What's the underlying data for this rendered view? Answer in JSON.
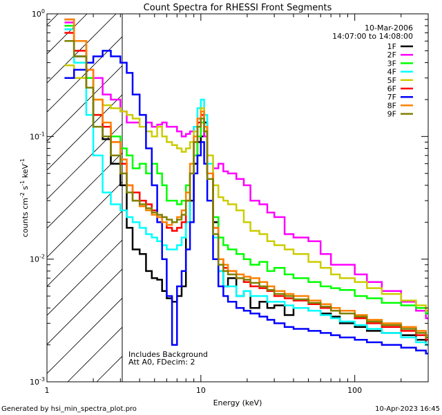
{
  "title": "Count Spectra for RHESSI Front Segments",
  "date": "10-Mar-2006",
  "time_range": "14:07:00 to 14:08:00",
  "footer_left": "Generated by hsi_min_spectra_plot.pro",
  "footer_right": "10-Apr-2023 16:45",
  "annotation": [
    "Includes Background",
    "Att A0, FDecim: 2"
  ],
  "chart_data": {
    "type": "line",
    "title": "Count Spectra for RHESSI Front Segments",
    "xlabel": "Energy (keV)",
    "ylabel_parts": {
      "base": "counts cm",
      "sup1": "-2",
      "mid": " s",
      "sup2": "-1",
      "tail": " keV",
      "sup3": "-1"
    },
    "xscale": "log",
    "yscale": "log",
    "xlim": [
      1,
      300
    ],
    "ylim": [
      0.001,
      1
    ],
    "x_tick_labels": [
      {
        "value": 1,
        "label": "1"
      },
      {
        "value": 10,
        "label": "10"
      },
      {
        "value": 100,
        "label": "100"
      }
    ],
    "y_tick_labels": [
      {
        "value": 1,
        "base": "10",
        "exp": "0"
      },
      {
        "value": 0.1,
        "base": "10",
        "exp": "-1"
      },
      {
        "value": 0.01,
        "base": "10",
        "exp": "-2"
      },
      {
        "value": 0.001,
        "base": "10",
        "exp": "-3"
      }
    ],
    "shaded_region": {
      "x": [
        1,
        3
      ],
      "style": "hatched"
    },
    "legend_position": "top-right",
    "series": [
      {
        "name": "1F",
        "color": "#000000",
        "x": [
          1.3,
          1.5,
          1.8,
          2.0,
          2.3,
          2.6,
          3.0,
          3.3,
          3.6,
          4.0,
          4.4,
          4.8,
          5.2,
          5.6,
          6.0,
          6.5,
          7.0,
          7.5,
          8.0,
          8.5,
          9.0,
          9.5,
          10.0,
          10.5,
          11.0,
          12.0,
          13,
          14,
          15,
          17,
          19,
          21,
          24,
          27,
          30,
          35,
          40,
          50,
          60,
          70,
          80,
          100,
          120,
          150,
          200,
          250,
          290
        ],
        "y": [
          0.9,
          0.45,
          0.3,
          0.12,
          0.095,
          0.06,
          0.04,
          0.018,
          0.012,
          0.011,
          0.008,
          0.007,
          0.0068,
          0.0055,
          0.0048,
          0.0045,
          0.005,
          0.006,
          0.02,
          0.03,
          0.06,
          0.09,
          0.1,
          0.13,
          0.05,
          0.02,
          0.008,
          0.006,
          0.007,
          0.005,
          0.0055,
          0.004,
          0.0045,
          0.004,
          0.0042,
          0.0035,
          0.004,
          0.0038,
          0.0036,
          0.0034,
          0.003,
          0.0028,
          0.0026,
          0.0025,
          0.0024,
          0.0022,
          0.002
        ]
      },
      {
        "name": "2F",
        "color": "#ff00ff",
        "x": [
          1.3,
          1.5,
          1.8,
          2.0,
          2.3,
          2.6,
          3.0,
          3.3,
          3.6,
          4.0,
          4.4,
          4.8,
          5.2,
          5.6,
          6.0,
          6.5,
          7.0,
          7.5,
          8.0,
          8.5,
          9.0,
          9.5,
          10.0,
          10.5,
          11.0,
          12.0,
          13,
          14,
          15,
          17,
          19,
          21,
          24,
          27,
          30,
          35,
          40,
          50,
          60,
          70,
          80,
          100,
          120,
          150,
          200,
          250,
          290
        ],
        "y": [
          0.85,
          0.6,
          0.35,
          0.3,
          0.22,
          0.2,
          0.16,
          0.13,
          0.13,
          0.12,
          0.13,
          0.12,
          0.125,
          0.13,
          0.12,
          0.12,
          0.11,
          0.1,
          0.105,
          0.11,
          0.12,
          0.14,
          0.15,
          0.1,
          0.06,
          0.055,
          0.06,
          0.052,
          0.05,
          0.045,
          0.04,
          0.03,
          0.028,
          0.024,
          0.022,
          0.016,
          0.015,
          0.014,
          0.011,
          0.009,
          0.009,
          0.0075,
          0.0065,
          0.0055,
          0.0045,
          0.0038,
          0.0033
        ]
      },
      {
        "name": "3F",
        "color": "#00ff00",
        "x": [
          1.3,
          1.5,
          1.8,
          2.0,
          2.3,
          2.6,
          3.0,
          3.3,
          3.6,
          4.0,
          4.4,
          4.8,
          5.2,
          5.6,
          6.0,
          6.5,
          7.0,
          7.5,
          8.0,
          8.5,
          9.0,
          9.5,
          10.0,
          10.5,
          11.0,
          12.0,
          13,
          14,
          15,
          17,
          19,
          21,
          24,
          27,
          30,
          35,
          40,
          50,
          60,
          70,
          80,
          100,
          120,
          150,
          200,
          250,
          290
        ],
        "y": [
          0.8,
          0.6,
          0.3,
          0.15,
          0.12,
          0.1,
          0.08,
          0.07,
          0.055,
          0.06,
          0.05,
          0.06,
          0.05,
          0.04,
          0.03,
          0.03,
          0.028,
          0.03,
          0.04,
          0.05,
          0.07,
          0.1,
          0.13,
          0.11,
          0.05,
          0.022,
          0.015,
          0.013,
          0.012,
          0.011,
          0.01,
          0.009,
          0.0095,
          0.008,
          0.0085,
          0.0075,
          0.007,
          0.0065,
          0.006,
          0.0058,
          0.0056,
          0.005,
          0.0048,
          0.0044,
          0.0042,
          0.004,
          0.0036
        ]
      },
      {
        "name": "4F",
        "color": "#00ffff",
        "x": [
          1.3,
          1.5,
          1.8,
          2.0,
          2.3,
          2.6,
          3.0,
          3.3,
          3.6,
          4.0,
          4.4,
          4.8,
          5.2,
          5.6,
          6.0,
          6.5,
          7.0,
          7.5,
          8.0,
          8.5,
          9.0,
          9.5,
          10.0,
          10.5,
          11.0,
          12.0,
          13,
          14,
          15,
          17,
          19,
          21,
          24,
          27,
          30,
          35,
          40,
          50,
          60,
          70,
          80,
          100,
          120,
          150,
          200,
          250,
          290
        ],
        "y": [
          0.75,
          0.4,
          0.15,
          0.07,
          0.035,
          0.028,
          0.025,
          0.022,
          0.02,
          0.018,
          0.016,
          0.015,
          0.014,
          0.013,
          0.012,
          0.012,
          0.013,
          0.015,
          0.02,
          0.05,
          0.12,
          0.17,
          0.2,
          0.15,
          0.06,
          0.015,
          0.008,
          0.006,
          0.006,
          0.005,
          0.0055,
          0.005,
          0.005,
          0.0045,
          0.0045,
          0.0042,
          0.004,
          0.0038,
          0.0035,
          0.0033,
          0.0031,
          0.0029,
          0.0027,
          0.0025,
          0.0023,
          0.0021,
          0.002
        ]
      },
      {
        "name": "5F",
        "color": "#cccc00",
        "x": [
          1.3,
          1.5,
          1.8,
          2.0,
          2.3,
          2.6,
          3.0,
          3.3,
          3.6,
          4.0,
          4.4,
          4.8,
          5.2,
          5.6,
          6.0,
          6.5,
          7.0,
          7.5,
          8.0,
          8.5,
          9.0,
          9.5,
          10.0,
          10.5,
          11.0,
          12.0,
          13,
          14,
          15,
          17,
          19,
          21,
          24,
          27,
          30,
          35,
          40,
          50,
          60,
          70,
          80,
          100,
          120,
          150,
          200,
          250,
          290
        ],
        "y": [
          0.38,
          0.3,
          0.25,
          0.2,
          0.18,
          0.17,
          0.16,
          0.15,
          0.14,
          0.12,
          0.11,
          0.1,
          0.12,
          0.1,
          0.09,
          0.085,
          0.08,
          0.075,
          0.08,
          0.09,
          0.11,
          0.14,
          0.17,
          0.12,
          0.07,
          0.04,
          0.032,
          0.03,
          0.028,
          0.025,
          0.02,
          0.017,
          0.016,
          0.014,
          0.013,
          0.012,
          0.011,
          0.0095,
          0.0085,
          0.0075,
          0.007,
          0.0065,
          0.0058,
          0.0052,
          0.0046,
          0.0042,
          0.0038
        ]
      },
      {
        "name": "6F",
        "color": "#ff0000",
        "x": [
          1.3,
          1.5,
          1.8,
          2.0,
          2.3,
          2.6,
          3.0,
          3.3,
          3.6,
          4.0,
          4.4,
          4.8,
          5.2,
          5.6,
          6.0,
          6.5,
          7.0,
          7.5,
          8.0,
          8.5,
          9.0,
          9.5,
          10.0,
          10.5,
          11.0,
          12.0,
          13,
          14,
          15,
          17,
          19,
          21,
          24,
          27,
          30,
          35,
          40,
          50,
          60,
          70,
          80,
          100,
          120,
          150,
          200,
          250,
          290
        ],
        "y": [
          0.7,
          0.5,
          0.25,
          0.15,
          0.12,
          0.09,
          0.06,
          0.04,
          0.035,
          0.03,
          0.028,
          0.025,
          0.022,
          0.02,
          0.018,
          0.017,
          0.018,
          0.02,
          0.03,
          0.05,
          0.09,
          0.13,
          0.15,
          0.12,
          0.05,
          0.018,
          0.01,
          0.0085,
          0.008,
          0.007,
          0.0065,
          0.006,
          0.0058,
          0.0055,
          0.005,
          0.0048,
          0.0046,
          0.0043,
          0.004,
          0.0038,
          0.0036,
          0.0033,
          0.003,
          0.0028,
          0.0026,
          0.0024,
          0.0022
        ]
      },
      {
        "name": "7F",
        "color": "#0000ff",
        "x": [
          1.3,
          1.5,
          1.8,
          2.0,
          2.3,
          2.6,
          3.0,
          3.3,
          3.6,
          4.0,
          4.4,
          4.8,
          5.2,
          5.6,
          6.0,
          6.5,
          7.0,
          7.5,
          8.0,
          8.5,
          9.0,
          9.5,
          10.0,
          10.5,
          11.0,
          12.0,
          13,
          14,
          15,
          17,
          19,
          21,
          24,
          27,
          30,
          35,
          40,
          50,
          60,
          70,
          80,
          100,
          120,
          150,
          200,
          250,
          290
        ],
        "y": [
          0.3,
          0.35,
          0.4,
          0.45,
          0.5,
          0.45,
          0.4,
          0.33,
          0.22,
          0.15,
          0.08,
          0.04,
          0.02,
          0.01,
          0.005,
          0.002,
          0.006,
          0.008,
          0.012,
          0.02,
          0.05,
          0.07,
          0.09,
          0.06,
          0.03,
          0.01,
          0.006,
          0.005,
          0.0045,
          0.004,
          0.0038,
          0.0036,
          0.0034,
          0.0032,
          0.003,
          0.0028,
          0.0027,
          0.0026,
          0.0025,
          0.0024,
          0.0023,
          0.0022,
          0.0021,
          0.002,
          0.0019,
          0.0018,
          0.0017
        ]
      },
      {
        "name": "8F",
        "color": "#ff8000",
        "x": [
          1.3,
          1.5,
          1.8,
          2.0,
          2.3,
          2.6,
          3.0,
          3.3,
          3.6,
          4.0,
          4.4,
          4.8,
          5.2,
          5.6,
          6.0,
          6.5,
          7.0,
          7.5,
          8.0,
          8.5,
          9.0,
          9.5,
          10.0,
          10.5,
          11.0,
          12.0,
          13,
          14,
          15,
          17,
          19,
          21,
          24,
          27,
          30,
          35,
          40,
          50,
          60,
          70,
          80,
          100,
          120,
          150,
          200,
          250,
          290
        ],
        "y": [
          0.9,
          0.6,
          0.35,
          0.2,
          0.13,
          0.09,
          0.065,
          0.04,
          0.03,
          0.027,
          0.025,
          0.023,
          0.022,
          0.02,
          0.019,
          0.02,
          0.022,
          0.025,
          0.035,
          0.06,
          0.1,
          0.14,
          0.16,
          0.12,
          0.05,
          0.018,
          0.01,
          0.009,
          0.008,
          0.0075,
          0.0072,
          0.007,
          0.0065,
          0.006,
          0.0055,
          0.0052,
          0.005,
          0.0046,
          0.0043,
          0.004,
          0.0038,
          0.0035,
          0.0032,
          0.003,
          0.0028,
          0.0026,
          0.0024
        ]
      },
      {
        "name": "9F",
        "color": "#808000",
        "x": [
          1.3,
          1.5,
          1.8,
          2.0,
          2.3,
          2.6,
          3.0,
          3.3,
          3.6,
          4.0,
          4.4,
          4.8,
          5.2,
          5.6,
          6.0,
          6.5,
          7.0,
          7.5,
          8.0,
          8.5,
          9.0,
          9.5,
          10.0,
          10.5,
          11.0,
          12.0,
          13,
          14,
          15,
          17,
          19,
          21,
          24,
          27,
          30,
          35,
          40,
          50,
          60,
          70,
          80,
          100,
          120,
          150,
          200,
          250,
          290
        ],
        "y": [
          0.6,
          0.45,
          0.25,
          0.12,
          0.1,
          0.07,
          0.05,
          0.035,
          0.03,
          0.028,
          0.026,
          0.024,
          0.023,
          0.022,
          0.021,
          0.02,
          0.021,
          0.023,
          0.03,
          0.05,
          0.09,
          0.12,
          0.14,
          0.11,
          0.045,
          0.016,
          0.009,
          0.008,
          0.0075,
          0.007,
          0.0068,
          0.0064,
          0.006,
          0.0056,
          0.0052,
          0.005,
          0.0047,
          0.0044,
          0.0041,
          0.0038,
          0.0036,
          0.0034,
          0.0031,
          0.0029,
          0.0027,
          0.0025,
          0.0023
        ]
      }
    ]
  }
}
